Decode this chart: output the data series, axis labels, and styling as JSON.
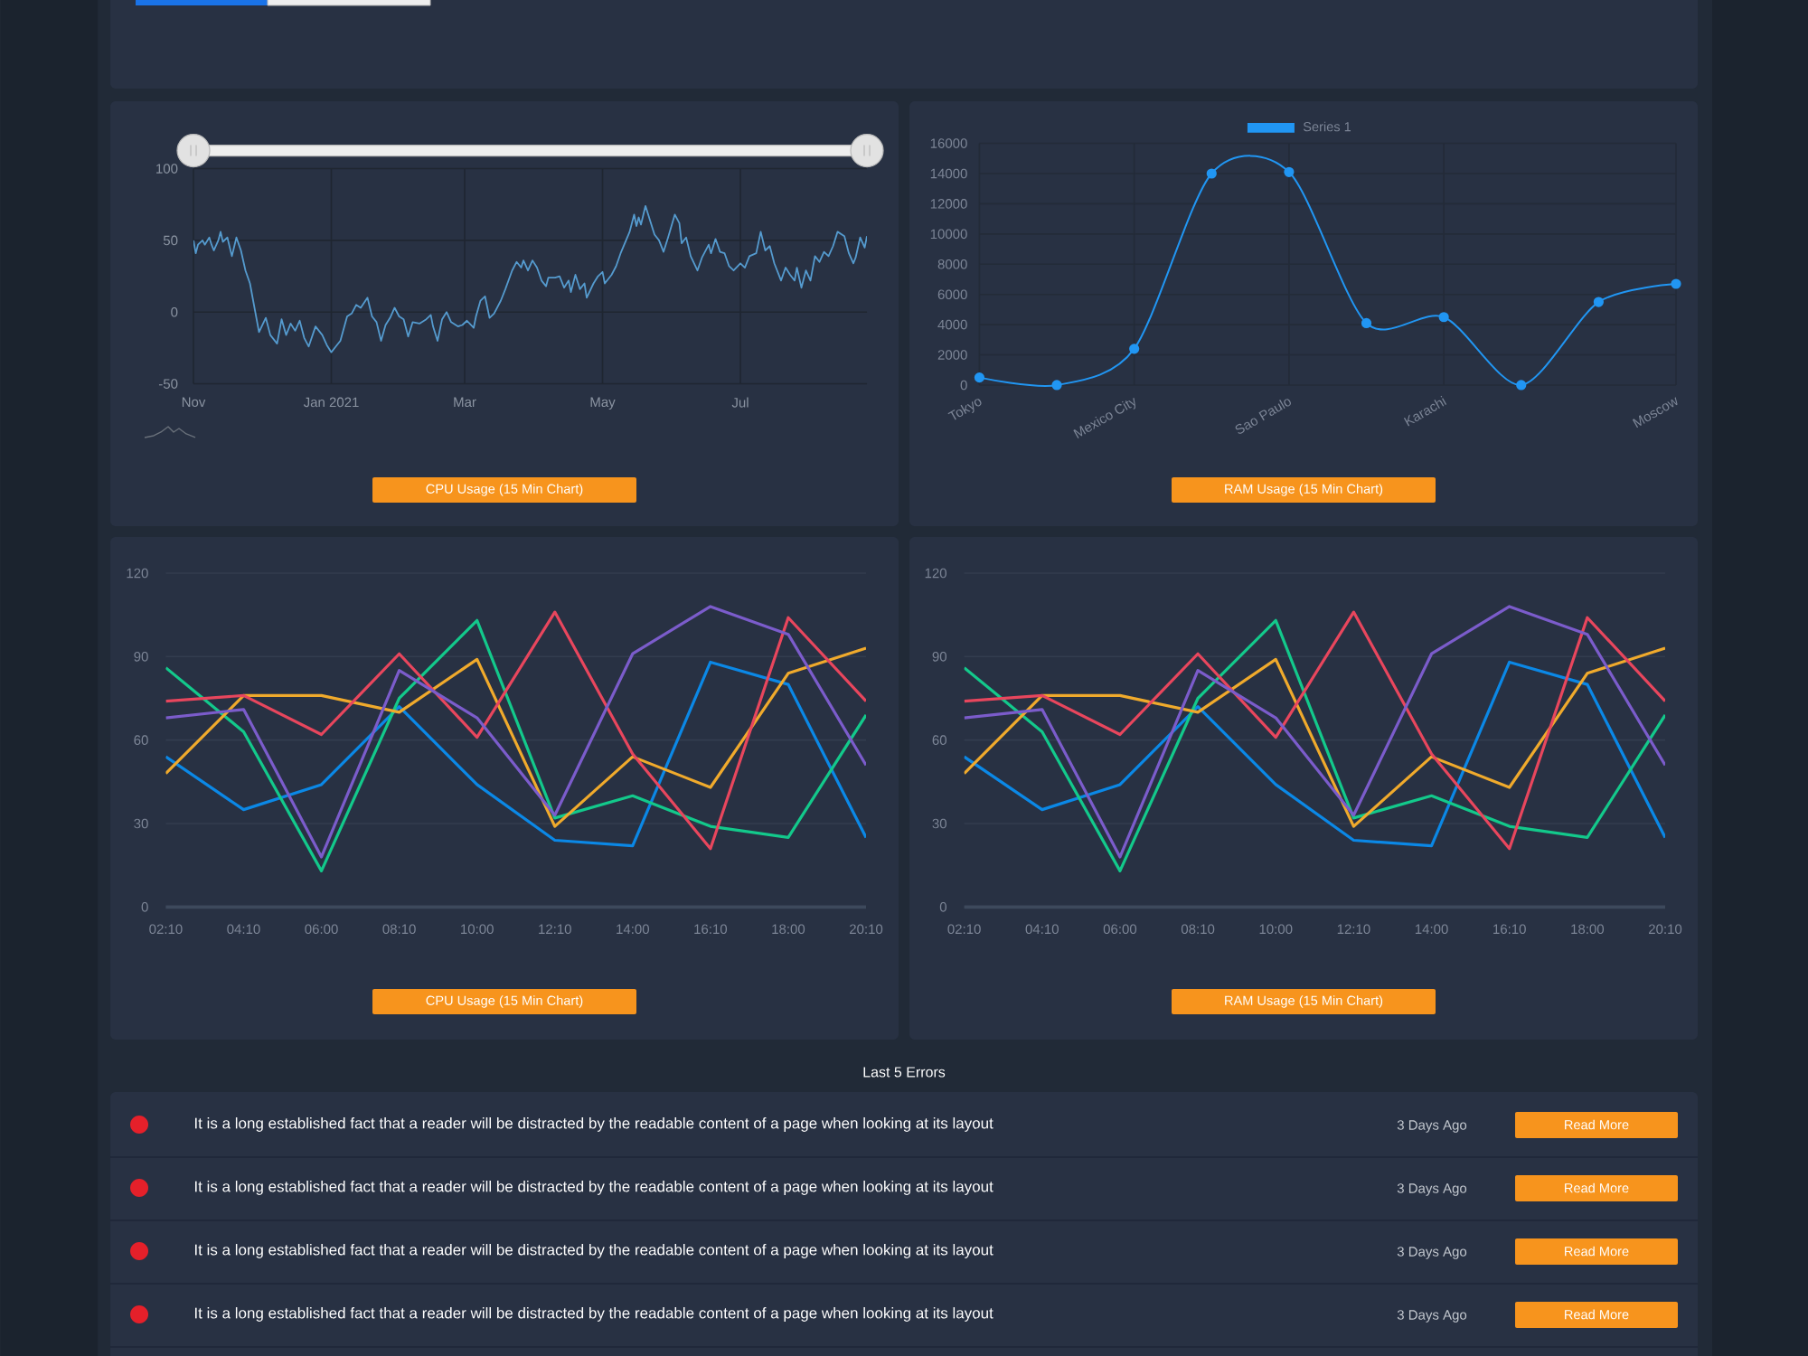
{
  "chart_data": [
    {
      "type": "line",
      "title": "CPU Usage (15 Min Chart)",
      "color": "#559bcf",
      "x": [
        "2020-11-01",
        "2020-11-02",
        "2020-11-03",
        "2020-11-05",
        "2020-11-06",
        "2020-11-08",
        "2020-11-09",
        "2020-11-10",
        "2020-11-12",
        "2020-11-13",
        "2020-11-14",
        "2020-11-16",
        "2020-11-18",
        "2020-11-20",
        "2020-11-22",
        "2020-11-24",
        "2020-11-26",
        "2020-11-28",
        "2020-11-30",
        "2020-12-03",
        "2020-12-05",
        "2020-12-08",
        "2020-12-10",
        "2020-12-12",
        "2020-12-14",
        "2020-12-16",
        "2020-12-18",
        "2020-12-20",
        "2020-12-22",
        "2020-12-25",
        "2020-12-28",
        "2020-12-30",
        "2021-01-01",
        "2021-01-03",
        "2021-01-05",
        "2021-01-08",
        "2021-01-10",
        "2021-01-12",
        "2021-01-14",
        "2021-01-17",
        "2021-01-19",
        "2021-01-21",
        "2021-01-23",
        "2021-01-25",
        "2021-01-27",
        "2021-01-29",
        "2021-01-31",
        "2021-02-02",
        "2021-02-04",
        "2021-02-06",
        "2021-02-09",
        "2021-02-12",
        "2021-02-14",
        "2021-02-15",
        "2021-02-17",
        "2021-02-19",
        "2021-02-21",
        "2021-02-23",
        "2021-02-26",
        "2021-02-28",
        "2021-03-02",
        "2021-03-05",
        "2021-03-06",
        "2021-03-08",
        "2021-03-10",
        "2021-03-12",
        "2021-03-14",
        "2021-03-17",
        "2021-03-19",
        "2021-03-22",
        "2021-03-24",
        "2021-03-26",
        "2021-03-27",
        "2021-03-29",
        "2021-03-31",
        "2021-04-02",
        "2021-04-04",
        "2021-04-06",
        "2021-04-07",
        "2021-04-10",
        "2021-04-12",
        "2021-04-14",
        "2021-04-16",
        "2021-04-17",
        "2021-04-19",
        "2021-04-21",
        "2021-04-23",
        "2021-04-24",
        "2021-04-27",
        "2021-04-29",
        "2021-05-01",
        "2021-05-02",
        "2021-05-05",
        "2021-05-07",
        "2021-05-09",
        "2021-05-13",
        "2021-05-15",
        "2021-05-16",
        "2021-05-17",
        "2021-05-18",
        "2021-05-20",
        "2021-05-22",
        "2021-05-24",
        "2021-05-26",
        "2021-05-28",
        "2021-05-30",
        "2021-06-02",
        "2021-06-04",
        "2021-06-05",
        "2021-06-07",
        "2021-06-09",
        "2021-06-12",
        "2021-06-14",
        "2021-06-17",
        "2021-06-18",
        "2021-06-20",
        "2021-06-22",
        "2021-06-24",
        "2021-06-26",
        "2021-06-28",
        "2021-07-01",
        "2021-07-03",
        "2021-07-05",
        "2021-07-08",
        "2021-07-10",
        "2021-07-12",
        "2021-07-14",
        "2021-07-16",
        "2021-07-19",
        "2021-07-21",
        "2021-07-23",
        "2021-07-25",
        "2021-07-26",
        "2021-07-28",
        "2021-07-30",
        "2021-08-01",
        "2021-08-03",
        "2021-08-05",
        "2021-08-07",
        "2021-08-09",
        "2021-08-11",
        "2021-08-13",
        "2021-08-16",
        "2021-08-18",
        "2021-08-20",
        "2021-08-21",
        "2021-08-23",
        "2021-08-25",
        "2021-08-26"
      ],
      "values": [
        50,
        41,
        47,
        50,
        47,
        52,
        47,
        43,
        50,
        56,
        49,
        52,
        39,
        52,
        43,
        29,
        20,
        3,
        -14,
        -4,
        -16,
        -22,
        -5,
        -16,
        -8,
        -13,
        -6,
        -18,
        -24,
        -10,
        -16,
        -23,
        -28,
        -24,
        -20,
        -3,
        -1,
        5,
        3,
        10,
        -3,
        -7,
        -20,
        -9,
        -4,
        3,
        -3,
        -5,
        -17,
        -7,
        -8,
        -5,
        -2,
        -10,
        -20,
        -5,
        0,
        -7,
        -10,
        -9,
        -6,
        -11,
        -3,
        8,
        11,
        -4,
        -1,
        8,
        16,
        29,
        35,
        31,
        36,
        29,
        36,
        31,
        22,
        18,
        24,
        24,
        25,
        17,
        22,
        14,
        26,
        16,
        20,
        10,
        20,
        25,
        28,
        20,
        26,
        32,
        41,
        56,
        68,
        60,
        66,
        61,
        74,
        64,
        54,
        50,
        42,
        52,
        68,
        62,
        48,
        52,
        39,
        29,
        38,
        47,
        41,
        51,
        42,
        41,
        32,
        29,
        34,
        31,
        39,
        41,
        56,
        43,
        46,
        34,
        22,
        31,
        26,
        22,
        31,
        17,
        29,
        22,
        39,
        35,
        42,
        39,
        46,
        56,
        53,
        41,
        34,
        38,
        52,
        45,
        53
      ],
      "xlim": [
        "2020-11-01",
        "2021-08-26"
      ],
      "xticks": [
        {
          "value": "2020-11-01",
          "label": "Nov"
        },
        {
          "value": "2021-01-01",
          "label": "Jan 2021"
        },
        {
          "value": "2021-03-01",
          "label": "Mar"
        },
        {
          "value": "2021-05-01",
          "label": "May"
        },
        {
          "value": "2021-07-01",
          "label": "Jul"
        }
      ],
      "ylim": [
        -50,
        100
      ],
      "yticks": [
        -50,
        0,
        50,
        100
      ],
      "grid": true
    },
    {
      "type": "line",
      "title": "RAM Usage (15 Min Chart)",
      "categories": [
        "Tokyo",
        null,
        "Mexico City",
        null,
        "Sao Paulo",
        null,
        "Karachi",
        null,
        null,
        "Moscow"
      ],
      "series": [
        {
          "name": "Series 1",
          "color": "#2196f3",
          "values": [
            500,
            0,
            2400,
            14000,
            14100,
            4100,
            4500,
            0,
            5500,
            6700
          ]
        }
      ],
      "ylim": [
        0,
        16000
      ],
      "yticks": [
        0,
        2000,
        4000,
        6000,
        8000,
        10000,
        12000,
        14000,
        16000
      ],
      "grid": true,
      "legend": "top",
      "marker": "circle"
    },
    {
      "type": "line",
      "title": "CPU Usage (15 Min Chart)",
      "categories": [
        "02:10",
        "04:10",
        "06:00",
        "08:10",
        "10:00",
        "12:10",
        "14:00",
        "16:10",
        "18:00",
        "20:10"
      ],
      "series": [
        {
          "color": "#0b88e6",
          "values": [
            54,
            35,
            44,
            72,
            44,
            24,
            22,
            88,
            80,
            25
          ]
        },
        {
          "color": "#13c98b",
          "values": [
            86,
            63,
            13,
            75,
            103,
            32,
            40,
            29,
            25,
            69
          ]
        },
        {
          "color": "#f0aa2c",
          "values": [
            48,
            76,
            76,
            70,
            89,
            29,
            54,
            43,
            84,
            93
          ]
        },
        {
          "color": "#e8465d",
          "values": [
            74,
            76,
            62,
            91,
            61,
            106,
            55,
            21,
            104,
            74
          ]
        },
        {
          "color": "#7b5ccb",
          "values": [
            68,
            71,
            18,
            85,
            68,
            33,
            91,
            108,
            98,
            51
          ]
        }
      ],
      "ylim": [
        0,
        120
      ],
      "yticks": [
        0,
        30,
        60,
        90,
        120
      ],
      "grid": "y"
    },
    {
      "type": "line",
      "title": "RAM Usage (15 Min Chart)",
      "categories": [
        "02:10",
        "04:10",
        "06:00",
        "08:10",
        "10:00",
        "12:10",
        "14:00",
        "16:10",
        "18:00",
        "20:10"
      ],
      "series": [
        {
          "color": "#0b88e6",
          "values": [
            54,
            35,
            44,
            72,
            44,
            24,
            22,
            88,
            80,
            25
          ]
        },
        {
          "color": "#13c98b",
          "values": [
            86,
            63,
            13,
            75,
            103,
            32,
            40,
            29,
            25,
            69
          ]
        },
        {
          "color": "#f0aa2c",
          "values": [
            48,
            76,
            76,
            70,
            89,
            29,
            54,
            43,
            84,
            93
          ]
        },
        {
          "color": "#e8465d",
          "values": [
            74,
            76,
            62,
            91,
            61,
            106,
            55,
            21,
            104,
            74
          ]
        },
        {
          "color": "#7b5ccb",
          "values": [
            68,
            71,
            18,
            85,
            68,
            33,
            91,
            108,
            98,
            51
          ]
        }
      ],
      "ylim": [
        0,
        120
      ],
      "yticks": [
        0,
        30,
        60,
        90,
        120
      ],
      "grid": "y"
    },
    {
      "type": "other",
      "title": "Last 5 Errors",
      "annotations": [
        "It is a long established fact that a reader will be distracted by the readable content of a page when looking at its layout",
        "3 Days Ago",
        "Read More",
        "It is a long established fact that a reader will be distracted by the readable content of a page when looking at its layout",
        "3 Days Ago",
        "Read More",
        "It is a long established fact that a reader will be distracted by the readable content of a page when looking at its layout",
        "3 Days Ago",
        "Read More",
        "It is a long established fact that a reader will be distracted by the readable content of a page when looking at its layout",
        "3 Days Ago",
        "Read More"
      ]
    }
  ]
}
